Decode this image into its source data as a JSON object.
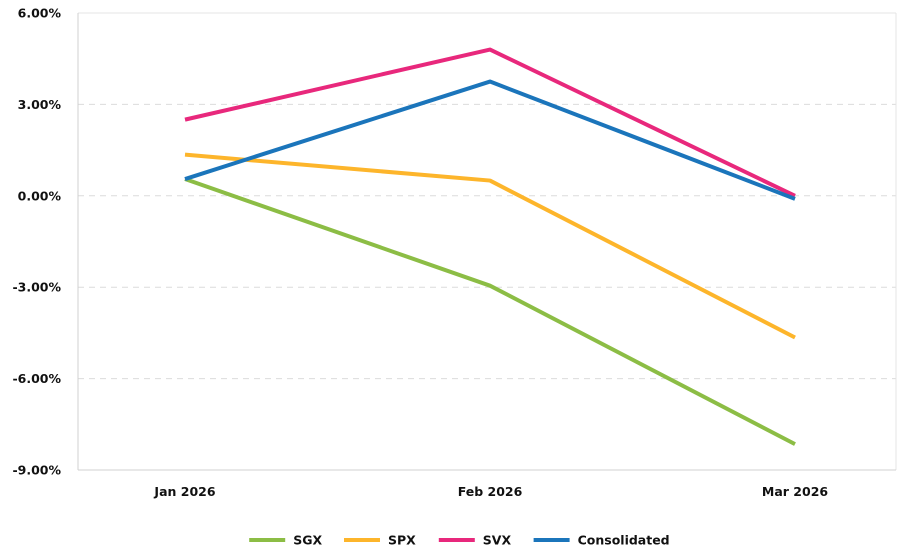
{
  "chart_data": {
    "type": "line",
    "categories": [
      "Jan 2026",
      "Feb 2026",
      "Mar 2026"
    ],
    "series": [
      {
        "name": "SGX",
        "color": "#8cbd45",
        "values": [
          0.55,
          -2.95,
          -8.15
        ]
      },
      {
        "name": "SPX",
        "color": "#fdb52b",
        "values": [
          1.35,
          0.5,
          -4.65
        ]
      },
      {
        "name": "SVX",
        "color": "#e8287c",
        "values": [
          2.5,
          4.8,
          0.0
        ]
      },
      {
        "name": "Consolidated",
        "color": "#1b75bb",
        "values": [
          0.55,
          3.75,
          -0.1
        ]
      }
    ],
    "yticks": [
      6,
      3,
      0,
      -3,
      -6,
      -9
    ],
    "ytick_labels": [
      "6.00%",
      "3.00%",
      "0.00%",
      "-3.00%",
      "-6.00%",
      "-9.00%"
    ],
    "ylim": [
      -9,
      6
    ],
    "grid": "horizontal dashed",
    "legend": "bottom-center",
    "title": "",
    "xlabel": "",
    "ylabel": ""
  }
}
